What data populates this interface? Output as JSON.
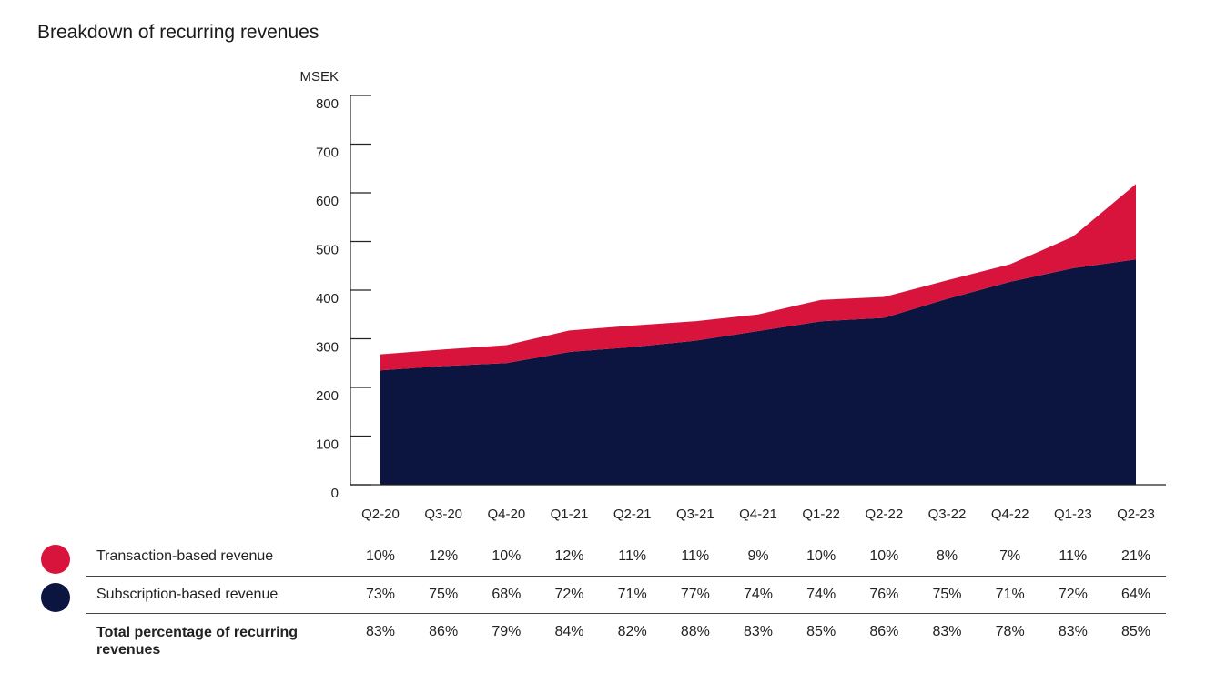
{
  "chart_data": {
    "type": "area",
    "title": "Breakdown of recurring revenues",
    "ylabel": "MSEK",
    "ylim": [
      0,
      800
    ],
    "yticks": [
      0,
      100,
      200,
      300,
      400,
      500,
      600,
      700,
      800
    ],
    "categories": [
      "Q2-20",
      "Q3-20",
      "Q4-20",
      "Q1-21",
      "Q2-21",
      "Q3-21",
      "Q4-21",
      "Q1-22",
      "Q2-22",
      "Q3-22",
      "Q4-22",
      "Q1-23",
      "Q2-23"
    ],
    "stacked": true,
    "series": [
      {
        "name": "Subscription-based revenue",
        "color": "#0b1540",
        "values": [
          235,
          244,
          250,
          273,
          283,
          296,
          316,
          336,
          343,
          382,
          417,
          445,
          463
        ]
      },
      {
        "name": "Transaction-based revenue",
        "color": "#d9143c",
        "values": [
          33,
          34,
          37,
          44,
          44,
          40,
          34,
          44,
          43,
          38,
          36,
          65,
          155
        ]
      }
    ],
    "table": {
      "rows": [
        {
          "label": "Transaction-based revenue",
          "color": "#d9143c",
          "values": [
            "10%",
            "12%",
            "10%",
            "12%",
            "11%",
            "11%",
            "9%",
            "10%",
            "10%",
            "8%",
            "7%",
            "11%",
            "21%"
          ]
        },
        {
          "label": "Subscription-based revenue",
          "color": "#0b1540",
          "values": [
            "73%",
            "75%",
            "68%",
            "72%",
            "71%",
            "77%",
            "74%",
            "74%",
            "76%",
            "75%",
            "71%",
            "72%",
            "64%"
          ]
        },
        {
          "label": "Total percentage of recurring revenues",
          "color": "",
          "values": [
            "83%",
            "86%",
            "79%",
            "84%",
            "82%",
            "88%",
            "83%",
            "85%",
            "86%",
            "83%",
            "78%",
            "83%",
            "85%"
          ]
        }
      ]
    }
  }
}
